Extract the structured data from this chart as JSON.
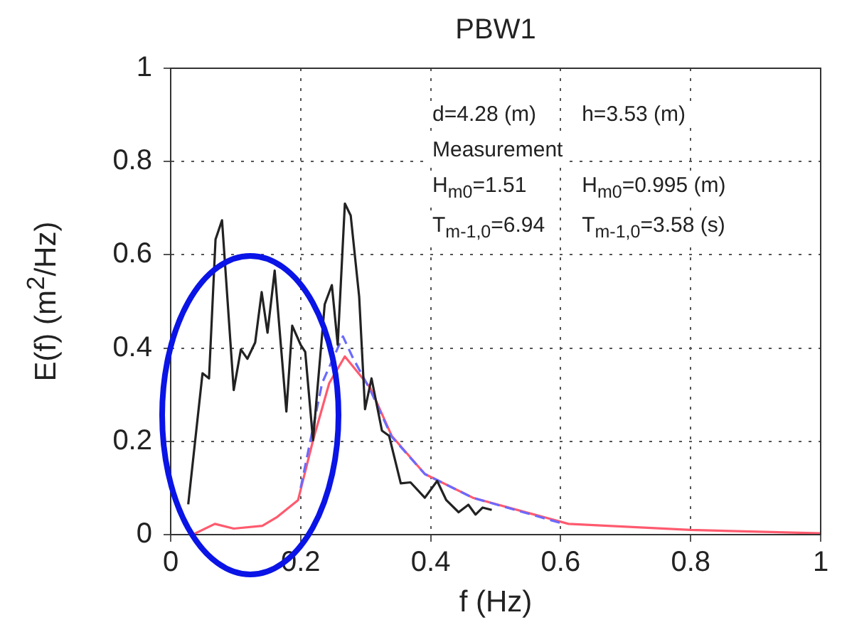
{
  "chart_data": {
    "type": "line",
    "title": "PBW1",
    "xlabel": "f (Hz)",
    "ylabel": "E(f) (m$^{2}$/Hz)",
    "xlim": [
      0,
      1
    ],
    "ylim": [
      0,
      1
    ],
    "xticks": [
      0,
      0.2,
      0.4,
      0.6,
      0.8,
      1
    ],
    "yticks": [
      0,
      0.2,
      0.4,
      0.6,
      0.8,
      1
    ],
    "grid": true,
    "marker": "none",
    "annotations": [
      "d=4.28 (m)",
      "h=3.53 (m)",
      "Measurement",
      "H$_{m0}$=1.51",
      "H$_{m0}$=0.995 (m)",
      "T$_{m-1,0}$=6.94",
      "T$_{m-1,0}$=3.58 (s)"
    ],
    "series": [
      {
        "color": "#222222",
        "line_style": "solid",
        "x": [
          0.027,
          0.049,
          0.059,
          0.069,
          0.079,
          0.097,
          0.108,
          0.118,
          0.13,
          0.14,
          0.149,
          0.16,
          0.178,
          0.187,
          0.2,
          0.207,
          0.219,
          0.237,
          0.248,
          0.257,
          0.268,
          0.277,
          0.29,
          0.299,
          0.309,
          0.325,
          0.336,
          0.354,
          0.369,
          0.391,
          0.41,
          0.424,
          0.443,
          0.458,
          0.469,
          0.48,
          0.494
        ],
        "values": [
          0.065,
          0.346,
          0.335,
          0.633,
          0.674,
          0.31,
          0.397,
          0.377,
          0.412,
          0.52,
          0.433,
          0.566,
          0.264,
          0.448,
          0.407,
          0.392,
          0.202,
          0.494,
          0.535,
          0.407,
          0.71,
          0.684,
          0.51,
          0.269,
          0.335,
          0.223,
          0.212,
          0.11,
          0.112,
          0.079,
          0.115,
          0.074,
          0.048,
          0.064,
          0.043,
          0.058,
          0.053
        ]
      },
      {
        "color": "#6a6aff",
        "line_style": "dashed",
        "x": [
          0.2,
          0.233,
          0.265,
          0.28,
          0.307,
          0.34,
          0.391,
          0.465,
          0.6
        ],
        "values": [
          0.1,
          0.325,
          0.425,
          0.38,
          0.31,
          0.21,
          0.13,
          0.079,
          0.025
        ]
      },
      {
        "color": "#ff5a6e",
        "line_style": "solid",
        "x": [
          0.034,
          0.068,
          0.097,
          0.141,
          0.164,
          0.196,
          0.219,
          0.244,
          0.268,
          0.307,
          0.34,
          0.391,
          0.465,
          0.612,
          0.8,
          1.0
        ],
        "values": [
          0,
          0.023,
          0.013,
          0.019,
          0.038,
          0.074,
          0.202,
          0.325,
          0.382,
          0.315,
          0.212,
          0.13,
          0.079,
          0.023,
          0.01,
          0.003
        ]
      }
    ]
  }
}
